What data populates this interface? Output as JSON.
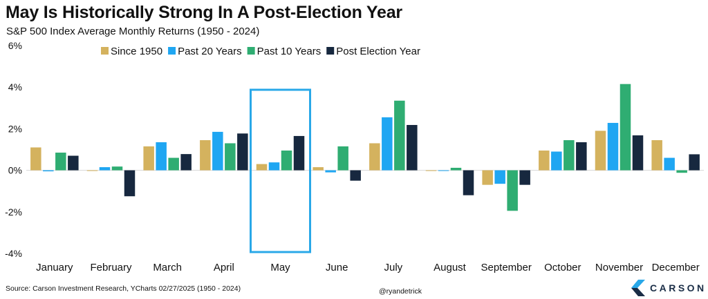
{
  "title": "May Is Historically Strong In A Post-Election Year",
  "subtitle": "S&P 500 Index Average Monthly Returns (1950 - 2024)",
  "source": "Source: Carson Investment Research, YCharts 02/27/2025 (1950 - 2024)",
  "handle": "@ryandetrick",
  "logo_text": "CARSON",
  "colors": {
    "since_1950": "#d4b25e",
    "past_20": "#1fa6f2",
    "past_10": "#2fad72",
    "post_election": "#17283f",
    "highlight": "#29a8e8"
  },
  "chart_data": {
    "type": "bar",
    "title": "May Is Historically Strong In A Post-Election Year",
    "subtitle": "S&P 500 Index Average Monthly Returns (1950 - 2024)",
    "categories": [
      "January",
      "February",
      "March",
      "April",
      "May",
      "June",
      "July",
      "August",
      "September",
      "October",
      "November",
      "December"
    ],
    "series": [
      {
        "name": "Since 1950",
        "values": [
          1.1,
          0.0,
          1.15,
          1.45,
          0.3,
          0.15,
          1.3,
          0.0,
          -0.7,
          0.95,
          1.9,
          1.45
        ]
      },
      {
        "name": "Past 20 Years",
        "values": [
          -0.05,
          0.15,
          1.35,
          1.85,
          0.38,
          -0.1,
          2.55,
          0.0,
          -0.65,
          0.9,
          2.28,
          0.6
        ]
      },
      {
        "name": "Past 10 Years",
        "values": [
          0.85,
          0.18,
          0.6,
          1.3,
          0.95,
          1.15,
          3.35,
          0.12,
          -1.95,
          1.45,
          4.15,
          -0.12
        ]
      },
      {
        "name": "Post Election Year",
        "values": [
          0.7,
          -1.25,
          0.78,
          1.77,
          1.65,
          -0.5,
          2.18,
          -1.2,
          -0.7,
          1.35,
          1.68,
          0.77
        ]
      }
    ],
    "ylim": [
      -4,
      6
    ],
    "yticks": [
      -4,
      -2,
      0,
      2,
      4,
      6
    ],
    "ytick_labels": [
      "-4%",
      "-2%",
      "0%",
      "2%",
      "4%",
      "6%"
    ],
    "xlabel": "",
    "ylabel": "",
    "highlight_category": "May",
    "legend_position": "top",
    "grid": false
  }
}
